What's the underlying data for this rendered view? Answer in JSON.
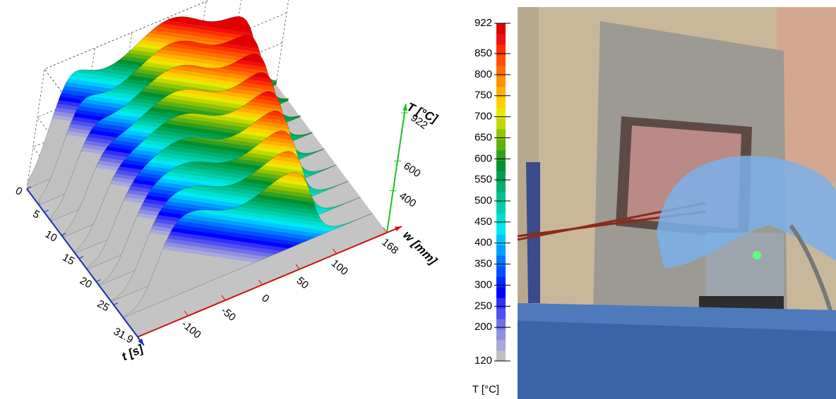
{
  "chart_data": [
    {
      "type": "surface3d",
      "xlabel": "w [mm]",
      "xlim": [
        -168,
        168
      ],
      "xticks": [
        -100,
        -50,
        0,
        50,
        100,
        168
      ],
      "ylabel": "t [s]",
      "ylim": [
        0,
        31.9
      ],
      "yticks": [
        0,
        5,
        10,
        15,
        20,
        25,
        31.9
      ],
      "zlabel": "T [°C]",
      "zlim": [
        120,
        922
      ],
      "zticks": [
        400,
        600,
        922
      ],
      "colors": [
        "#c0c0c0",
        "#a8a8dc",
        "#9090e0",
        "#7070e8",
        "#5050f0",
        "#3030f8",
        "#0000ff",
        "#0028ff",
        "#0050ff",
        "#0078ff",
        "#00a0ff",
        "#00c8ff",
        "#00e8f0",
        "#00e0d0",
        "#00d0b0",
        "#00c090",
        "#00b070",
        "#00a050",
        "#009030",
        "#30a020",
        "#60b010",
        "#90c400",
        "#c0d800",
        "#e8e800",
        "#ffd000",
        "#ffb000",
        "#ff9000",
        "#ff7000",
        "#ff5000",
        "#ff3000",
        "#f01010",
        "#e00000"
      ]
    },
    {
      "type": "colorbar",
      "label": "T [°C]",
      "ylim": [
        120,
        922
      ],
      "yticks": [
        120,
        200,
        250,
        300,
        350,
        400,
        450,
        500,
        550,
        600,
        650,
        700,
        750,
        800,
        850,
        922
      ],
      "colors": [
        "#c0c0c0",
        "#a8a8dc",
        "#9090e0",
        "#7070e8",
        "#5050f0",
        "#3030f8",
        "#0000ff",
        "#0028ff",
        "#0050ff",
        "#0078ff",
        "#00a0ff",
        "#00c8ff",
        "#00e8f0",
        "#00e0d0",
        "#00d0b0",
        "#00c090",
        "#00b070",
        "#00a050",
        "#009030",
        "#30a020",
        "#60b010",
        "#90c400",
        "#c0d800",
        "#e8e800",
        "#ffd000",
        "#ffb000",
        "#ff9000",
        "#ff7000",
        "#ff5000",
        "#ff3000",
        "#f01010",
        "#e00000"
      ]
    }
  ]
}
